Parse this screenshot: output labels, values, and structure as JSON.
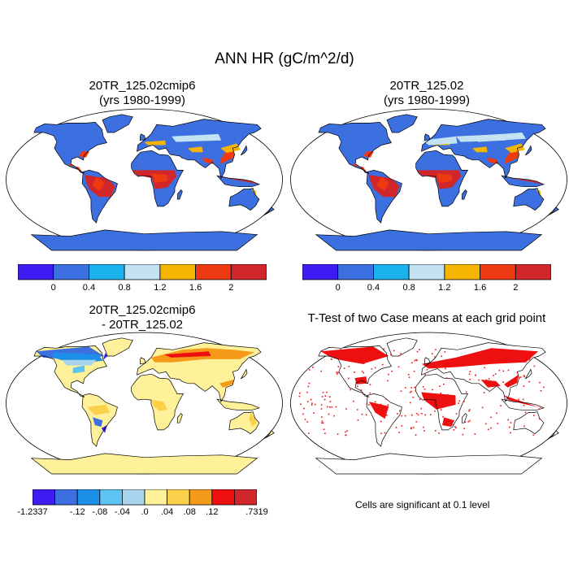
{
  "title": "ANN HR (gC/m^2/d)",
  "panels": [
    {
      "title_line1": "20TR_125.02cmip6",
      "title_line2": "(yrs 1980-1999)"
    },
    {
      "title_line1": "20TR_125.02",
      "title_line2": "(yrs 1980-1999)"
    },
    {
      "title_line1": "20TR_125.02cmip6",
      "title_line2": "- 20TR_125.02"
    },
    {
      "title_line1": "T-Test of two Case means at each grid point",
      "title_line2": ""
    }
  ],
  "colorbar_abs": {
    "colors": [
      "#3d1bf2",
      "#3c6fe0",
      "#19b2ee",
      "#c3e2f2",
      "#f5b400",
      "#ee3a10",
      "#d1262a"
    ],
    "labels": [
      "0",
      "0.4",
      "0.8",
      "1.2",
      "1.6",
      "2"
    ]
  },
  "colorbar_diff": {
    "colors": [
      "#3d1bf2",
      "#3c6fe0",
      "#1c8fe8",
      "#5cc3f2",
      "#a8d4ee",
      "#fff199",
      "#fbd14c",
      "#f69a1a",
      "#ee1010",
      "#d1262a"
    ],
    "labels": [
      "-1.2337",
      "-.12",
      "-.08",
      "-.04",
      ".0",
      ".04",
      ".08",
      ".12",
      ".7319"
    ]
  },
  "ttest_note": "Cells are significant at 0.1 level",
  "colors": {
    "ocean": "#ffffff",
    "land_abs": "#3c6fe0",
    "land_diff": "#fff199",
    "significant": "#ee1010"
  }
}
